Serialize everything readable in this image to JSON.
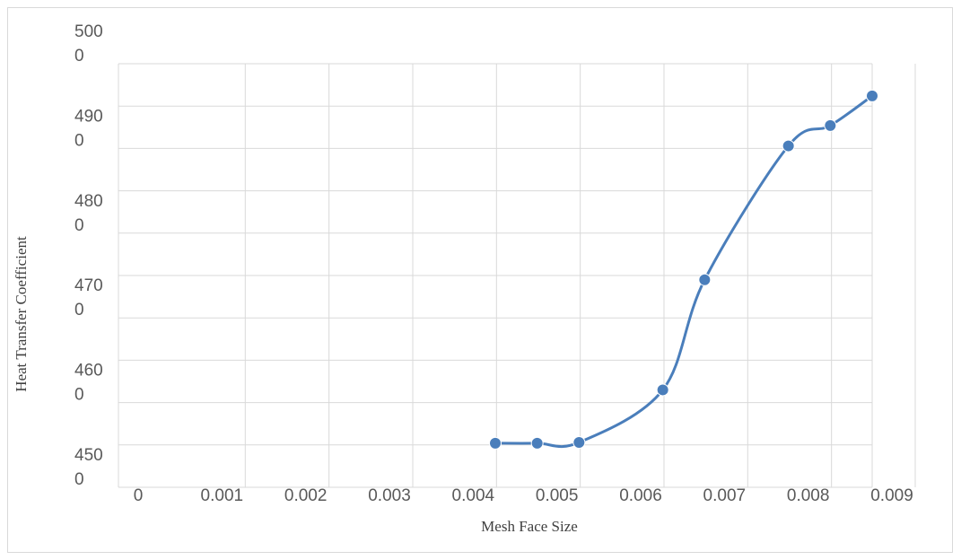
{
  "chart_data": {
    "type": "line",
    "xlabel": "Mesh Face Size",
    "ylabel": "Heat Transfer Coefficient",
    "xlim": [
      0,
      0.009
    ],
    "ylim": [
      4500,
      5000
    ],
    "x_ticks": [
      "0",
      "0.001",
      "0.002",
      "0.003",
      "0.004",
      "0.005",
      "0.006",
      "0.007",
      "0.008",
      "0.009"
    ],
    "y_ticks": [
      {
        "value": 4500,
        "line1": "450",
        "line2": "0"
      },
      {
        "value": 4600,
        "line1": "460",
        "line2": "0"
      },
      {
        "value": 4700,
        "line1": "470",
        "line2": "0"
      },
      {
        "value": 4800,
        "line1": "480",
        "line2": "0"
      },
      {
        "value": 4900,
        "line1": "490",
        "line2": "0"
      },
      {
        "value": 5000,
        "line1": "500",
        "line2": "0"
      }
    ],
    "grid": true,
    "smooth": true,
    "series": [
      {
        "x": [
          0.0045,
          0.005,
          0.0055,
          0.0065,
          0.007,
          0.008,
          0.0085,
          0.009
        ],
        "y": [
          4552,
          4552,
          4553,
          4615,
          4745,
          4903,
          4927,
          4962
        ]
      }
    ],
    "colors": {
      "line": "#4a7ebb",
      "marker": "#4a7ebb",
      "grid": "#d9d9d9",
      "axis": "#bfbfbf"
    }
  }
}
